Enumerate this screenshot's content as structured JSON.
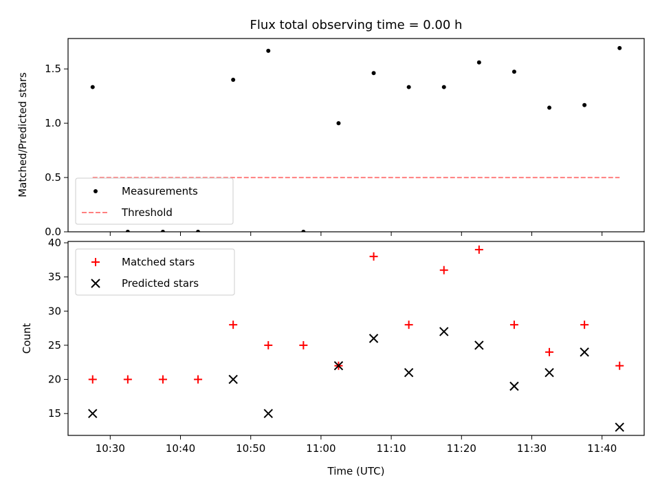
{
  "chart_data": [
    {
      "type": "scatter",
      "title": "Flux total observing time = 0.00 h",
      "xlabel": "",
      "ylabel": "Matched/Predicted stars",
      "ylim": [
        0,
        1.78
      ],
      "xlim": [
        "10:24",
        "11:46"
      ],
      "yticks": [
        "0.0",
        "0.5",
        "1.0",
        "1.5"
      ],
      "grid": false,
      "legend": "lower-left",
      "series": [
        {
          "name": "Measurements",
          "color": "#000000",
          "marker": "dot",
          "x": [
            "10:27:30",
            "10:32:30",
            "10:37:30",
            "10:42:30",
            "10:47:30",
            "10:52:30",
            "10:57:30",
            "11:02:30",
            "11:07:30",
            "11:12:30",
            "11:17:30",
            "11:22:30",
            "11:27:30",
            "11:32:30",
            "11:37:30",
            "11:42:30"
          ],
          "y": [
            1.333,
            0,
            0,
            0,
            1.4,
            1.667,
            0,
            1.0,
            1.462,
            1.333,
            1.333,
            1.56,
            1.474,
            1.143,
            1.167,
            1.692
          ]
        },
        {
          "name": "Threshold",
          "color": "#ff7f7f",
          "style": "dashed",
          "x": [
            "10:27:30",
            "11:42:30"
          ],
          "y": [
            0.5,
            0.5
          ]
        }
      ]
    },
    {
      "type": "scatter",
      "title": "",
      "xlabel": "Time (UTC)",
      "ylabel": "Count",
      "ylim": [
        11.8,
        40.2
      ],
      "xlim": [
        "10:24",
        "11:46"
      ],
      "xticks": [
        "10:30",
        "10:40",
        "10:50",
        "11:00",
        "11:10",
        "11:20",
        "11:30",
        "11:40"
      ],
      "yticks": [
        "15",
        "20",
        "25",
        "30",
        "35",
        "40"
      ],
      "grid": false,
      "legend": "upper-left",
      "series": [
        {
          "name": "Matched stars",
          "color": "#ff0000",
          "marker": "plus",
          "x": [
            "10:27:30",
            "10:32:30",
            "10:37:30",
            "10:42:30",
            "10:47:30",
            "10:52:30",
            "10:57:30",
            "11:02:30",
            "11:07:30",
            "11:12:30",
            "11:17:30",
            "11:22:30",
            "11:27:30",
            "11:32:30",
            "11:37:30",
            "11:42:30"
          ],
          "y": [
            20,
            20,
            20,
            20,
            28,
            25,
            25,
            22,
            38,
            28,
            36,
            39,
            28,
            24,
            28,
            22
          ]
        },
        {
          "name": "Predicted stars",
          "color": "#000000",
          "marker": "x",
          "x": [
            "10:27:30",
            "10:47:30",
            "10:52:30",
            "11:02:30",
            "11:07:30",
            "11:12:30",
            "11:17:30",
            "11:22:30",
            "11:27:30",
            "11:32:30",
            "11:37:30",
            "11:42:30"
          ],
          "y": [
            15,
            20,
            15,
            22,
            26,
            21,
            27,
            25,
            19,
            21,
            24,
            13
          ]
        }
      ]
    }
  ]
}
